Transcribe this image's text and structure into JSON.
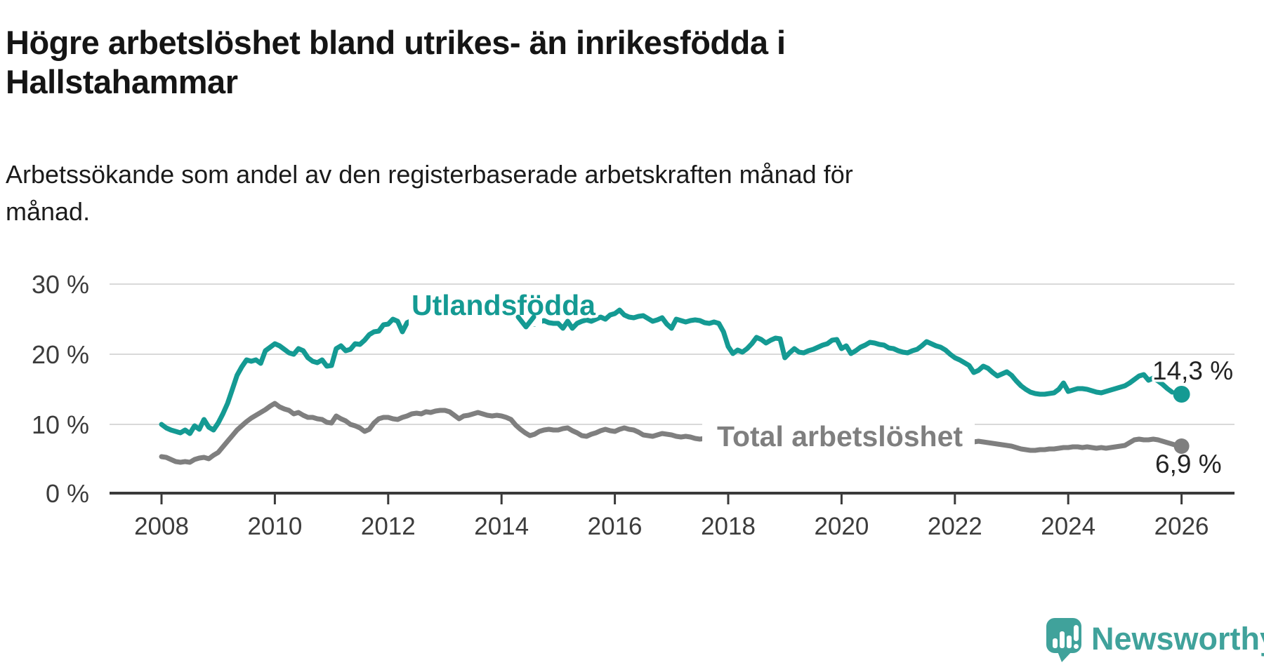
{
  "header": {
    "title_lines": [
      "Högre arbetslöshet bland utrikes- än inrikesfödda i",
      "Hallstahammar"
    ],
    "subtitle_lines": [
      "Arbetssökande som andel av den registerbaserade arbetskraften månad för",
      "månad."
    ]
  },
  "chart_data": {
    "type": "line",
    "unit": "%",
    "x_start": "2008-01",
    "x_end": "2026-01",
    "points_per_year": 12,
    "x_tick_labels": [
      "2008",
      "2010",
      "2012",
      "2014",
      "2016",
      "2018",
      "2020",
      "2022",
      "2024",
      "2026"
    ],
    "y_tick_labels": [
      "30 %",
      "20 %",
      "10 %",
      "0 %"
    ],
    "ylim": [
      0,
      31
    ],
    "grid": true,
    "legend_position": "inline-labels",
    "series": [
      {
        "name": "Utlandsfödda",
        "color": "#149a93",
        "end_value": 14.3,
        "end_value_label": "14,3 %",
        "values": [
          10.0,
          9.5,
          9.2,
          9.0,
          8.8,
          9.2,
          8.7,
          9.8,
          9.3,
          10.7,
          9.6,
          9.2,
          10.2,
          11.5,
          13.0,
          15.0,
          17.0,
          18.2,
          19.2,
          19.0,
          19.2,
          18.7,
          20.5,
          21.0,
          21.5,
          21.2,
          20.7,
          20.2,
          20.0,
          20.8,
          20.5,
          19.5,
          19.0,
          18.8,
          19.2,
          18.3,
          18.4,
          20.8,
          21.2,
          20.5,
          20.7,
          21.5,
          21.4,
          22.0,
          22.8,
          23.2,
          23.3,
          24.2,
          24.3,
          25.0,
          24.7,
          23.2,
          24.5,
          24.8,
          25.0,
          24.8,
          25.1,
          25.0,
          25.2,
          25.3,
          25.5,
          25.4,
          25.6,
          25.3,
          25.2,
          25.4,
          25.2,
          25.0,
          25.2,
          24.9,
          25.0,
          24.9,
          24.8,
          24.6,
          24.7,
          24.5,
          24.6,
          24.4,
          24.5,
          24.3,
          24.6,
          24.8,
          24.5,
          24.4,
          24.4,
          23.7,
          24.7,
          23.7,
          24.4,
          24.7,
          24.9,
          24.7,
          25.0,
          25.3,
          25.0,
          25.6,
          25.8,
          26.3,
          25.6,
          25.3,
          25.2,
          25.4,
          25.5,
          25.1,
          24.7,
          24.9,
          25.2,
          24.3,
          23.7,
          25.0,
          24.8,
          24.6,
          24.8,
          24.9,
          24.8,
          24.5,
          24.4,
          24.6,
          24.4,
          23.2,
          21.1,
          20.1,
          20.6,
          20.3,
          20.8,
          21.5,
          22.4,
          22.1,
          21.6,
          22.0,
          22.3,
          22.2,
          19.5,
          20.2,
          20.8,
          20.3,
          20.2,
          20.5,
          20.7,
          21.0,
          21.3,
          21.5,
          22.0,
          22.1,
          20.8,
          21.2,
          20.1,
          20.5,
          21.0,
          21.3,
          21.7,
          21.6,
          21.4,
          21.3,
          20.9,
          20.8,
          20.5,
          20.3,
          20.2,
          20.5,
          20.7,
          21.2,
          21.8,
          21.5,
          21.2,
          21.0,
          20.6,
          20.0,
          19.5,
          19.2,
          18.8,
          18.4,
          17.4,
          17.7,
          18.3,
          18.0,
          17.4,
          16.9,
          17.2,
          17.5,
          17.0,
          16.2,
          15.5,
          15.0,
          14.6,
          14.4,
          14.3,
          14.3,
          14.4,
          14.5,
          15.0,
          15.9,
          14.7,
          14.9,
          15.1,
          15.1,
          15.0,
          14.8,
          14.6,
          14.5,
          14.7,
          14.9,
          15.1,
          15.3,
          15.5,
          15.9,
          16.4,
          16.9,
          17.1,
          16.3,
          16.6,
          16.2,
          15.7,
          15.1,
          14.6,
          14.4,
          14.3
        ]
      },
      {
        "name": "Total arbetslöshet",
        "color": "#7f7f7f",
        "end_value": 6.9,
        "end_value_label": "6,9 %",
        "values": [
          5.4,
          5.3,
          5.0,
          4.7,
          4.6,
          4.7,
          4.6,
          5.0,
          5.2,
          5.3,
          5.1,
          5.6,
          6.0,
          6.8,
          7.6,
          8.4,
          9.2,
          9.8,
          10.4,
          10.9,
          11.3,
          11.7,
          12.1,
          12.6,
          13.0,
          12.5,
          12.2,
          12.0,
          11.5,
          11.7,
          11.3,
          11.0,
          11.0,
          10.8,
          10.7,
          10.3,
          10.2,
          11.2,
          10.8,
          10.5,
          10.0,
          9.8,
          9.5,
          9.0,
          9.3,
          10.2,
          10.8,
          11.0,
          11.0,
          10.8,
          10.7,
          11.0,
          11.2,
          11.5,
          11.6,
          11.5,
          11.8,
          11.7,
          11.9,
          12.0,
          12.0,
          11.8,
          11.3,
          10.8,
          11.2,
          11.3,
          11.5,
          11.7,
          11.5,
          11.3,
          11.2,
          11.3,
          11.2,
          11.0,
          10.7,
          9.9,
          9.3,
          8.8,
          8.4,
          8.6,
          9.0,
          9.2,
          9.3,
          9.2,
          9.2,
          9.4,
          9.5,
          9.1,
          8.8,
          8.4,
          8.3,
          8.6,
          8.8,
          9.1,
          9.3,
          9.1,
          9.0,
          9.3,
          9.5,
          9.3,
          9.2,
          8.9,
          8.5,
          8.4,
          8.3,
          8.5,
          8.7,
          8.6,
          8.5,
          8.3,
          8.2,
          8.3,
          8.2,
          8.0,
          7.9,
          8.0,
          7.9,
          7.8,
          7.9,
          7.8,
          7.8,
          7.7,
          7.8,
          7.7,
          7.6,
          7.7,
          7.6,
          7.7,
          7.6,
          7.7,
          7.6,
          7.7,
          7.6,
          7.7,
          7.6,
          7.5,
          7.6,
          7.7,
          7.8,
          7.7,
          7.8,
          7.9,
          7.8,
          7.9,
          8.0,
          8.1,
          8.3,
          8.5,
          8.6,
          8.5,
          8.4,
          8.3,
          8.2,
          8.1,
          8.0,
          7.9,
          7.9,
          7.8,
          7.9,
          7.8,
          7.7,
          7.8,
          7.7,
          7.6,
          7.7,
          7.6,
          7.7,
          7.6,
          7.6,
          7.5,
          7.6,
          7.6,
          7.5,
          7.6,
          7.5,
          7.4,
          7.3,
          7.2,
          7.1,
          7.0,
          6.9,
          6.7,
          6.5,
          6.4,
          6.3,
          6.3,
          6.4,
          6.4,
          6.5,
          6.5,
          6.6,
          6.7,
          6.7,
          6.8,
          6.8,
          6.7,
          6.8,
          6.7,
          6.6,
          6.7,
          6.6,
          6.7,
          6.8,
          6.9,
          7.0,
          7.4,
          7.8,
          7.9,
          7.8,
          7.8,
          7.9,
          7.8,
          7.6,
          7.4,
          7.2,
          7.0,
          6.9
        ]
      }
    ]
  },
  "style": {
    "axis_color": "#3a3a3a",
    "grid_color": "#d9d9d9",
    "value_label_color": "#232323"
  },
  "branding": {
    "logo_text": "Newsworthy",
    "logo_color": "#40a29b"
  }
}
